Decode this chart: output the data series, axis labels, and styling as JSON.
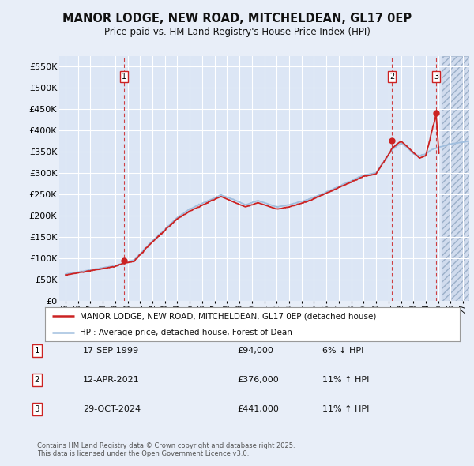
{
  "title": "MANOR LODGE, NEW ROAD, MITCHELDEAN, GL17 0EP",
  "subtitle": "Price paid vs. HM Land Registry's House Price Index (HPI)",
  "ylim": [
    0,
    575000
  ],
  "yticks": [
    0,
    50000,
    100000,
    150000,
    200000,
    250000,
    300000,
    350000,
    400000,
    450000,
    500000,
    550000
  ],
  "xlim_start": 1994.5,
  "xlim_end": 2027.5,
  "background_color": "#e8eef8",
  "plot_bg_color": "#dce6f5",
  "grid_color": "#ffffff",
  "hpi_color": "#a0bede",
  "price_color": "#cc2222",
  "hatch_color": "#c8d4e8",
  "transaction_dates": [
    1999.71,
    2021.28,
    2024.83
  ],
  "transaction_prices": [
    94000,
    376000,
    441000
  ],
  "legend_entries": [
    "MANOR LODGE, NEW ROAD, MITCHELDEAN, GL17 0EP (detached house)",
    "HPI: Average price, detached house, Forest of Dean"
  ],
  "table_rows": [
    {
      "num": 1,
      "date": "17-SEP-1999",
      "price": "£94,000",
      "change": "6% ↓ HPI"
    },
    {
      "num": 2,
      "date": "12-APR-2021",
      "price": "£376,000",
      "change": "11% ↑ HPI"
    },
    {
      "num": 3,
      "date": "29-OCT-2024",
      "price": "£441,000",
      "change": "11% ↑ HPI"
    }
  ],
  "footnote": "Contains HM Land Registry data © Crown copyright and database right 2025.\nThis data is licensed under the Open Government Licence v3.0.",
  "dashed_line_color": "#cc2222",
  "current_year": 2025.3
}
